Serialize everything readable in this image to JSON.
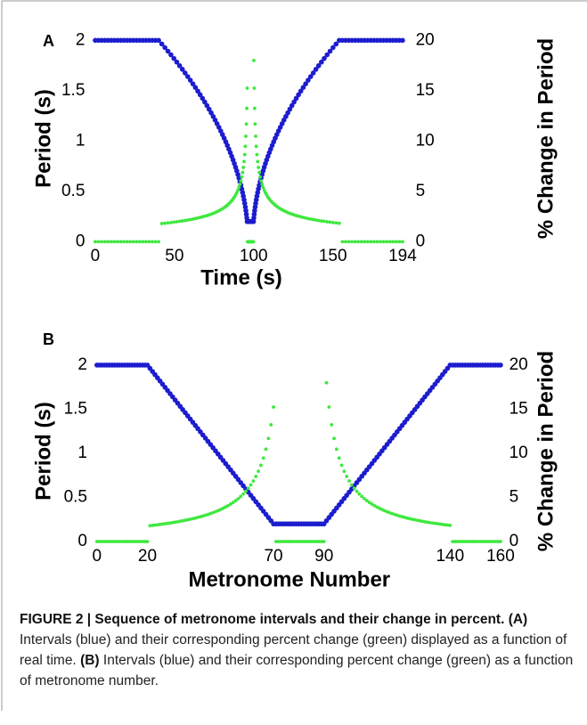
{
  "chart_data": [
    {
      "type": "scatter",
      "panel_label": "A",
      "xlabel": "Time (s)",
      "ylabel": "Period (s)",
      "y2label": "% Change in Period",
      "x": [
        0,
        2,
        4,
        6,
        8,
        10,
        12,
        14,
        16,
        18,
        20,
        22,
        24,
        26,
        28,
        30,
        32,
        34,
        36,
        38,
        40,
        42,
        43.964,
        45.892,
        47.784,
        49.64,
        51.46,
        53.244,
        54.992,
        56.704,
        58.38,
        60.02,
        61.624,
        63.192,
        64.724,
        66.22,
        67.68,
        69.104,
        70.492,
        71.844,
        73.16,
        74.44,
        75.684,
        76.892,
        78.064,
        79.2,
        80.3,
        81.364,
        82.392,
        83.384,
        84.34,
        85.26,
        86.144,
        86.992,
        87.804,
        88.58,
        89.32,
        90.024,
        90.692,
        91.324,
        91.92,
        92.48,
        93.004,
        93.492,
        93.944,
        94.36,
        94.74,
        95.084,
        95.392,
        95.664,
        95.9,
        96.1,
        96.3,
        96.5,
        96.7,
        96.9,
        97.1,
        97.3,
        97.5,
        97.7,
        97.9,
        98.1,
        98.3,
        98.5,
        98.7,
        98.9,
        99.1,
        99.3,
        99.5,
        99.7,
        99.9,
        100.1,
        100.336,
        100.608,
        100.916,
        101.26,
        101.64,
        102.056,
        102.508,
        102.996,
        103.52,
        104.08,
        104.676,
        105.308,
        105.976,
        106.68,
        107.42,
        108.196,
        109.008,
        109.856,
        110.74,
        111.66,
        112.616,
        113.608,
        114.636,
        115.7,
        116.8,
        117.936,
        119.108,
        120.316,
        121.56,
        122.84,
        124.156,
        125.508,
        126.896,
        128.32,
        129.78,
        131.276,
        132.808,
        134.376,
        135.98,
        137.62,
        139.296,
        141.008,
        142.756,
        144.54,
        146.36,
        148.216,
        150.108,
        152.036,
        154,
        156,
        158,
        160,
        162,
        164,
        166,
        168,
        170,
        172,
        174,
        176,
        178,
        180,
        182,
        184,
        186,
        188,
        190,
        192,
        194
      ],
      "xlim": [
        -2,
        200
      ],
      "xticks": [
        0,
        50,
        100,
        150,
        194
      ],
      "ylim": [
        -0.05,
        2.1
      ],
      "yticks": [
        0,
        0.5,
        1,
        1.5,
        2
      ],
      "y2lim": [
        -0.5,
        21
      ],
      "y2ticks": [
        0,
        5,
        10,
        15,
        20
      ],
      "series": [
        {
          "color": "#1c1ccf",
          "values": [
            2,
            2,
            2,
            2,
            2,
            2,
            2,
            2,
            2,
            2,
            2,
            2,
            2,
            2,
            2,
            2,
            2,
            2,
            2,
            2,
            2,
            1.964,
            1.928,
            1.892,
            1.856,
            1.82,
            1.784,
            1.748,
            1.712,
            1.676,
            1.64,
            1.604,
            1.568,
            1.532,
            1.496,
            1.46,
            1.424,
            1.388,
            1.352,
            1.316,
            1.28,
            1.244,
            1.208,
            1.172,
            1.136,
            1.1,
            1.064,
            1.028,
            0.992,
            0.956,
            0.92,
            0.884,
            0.848,
            0.812,
            0.776,
            0.74,
            0.704,
            0.668,
            0.632,
            0.596,
            0.56,
            0.524,
            0.488,
            0.452,
            0.416,
            0.38,
            0.344,
            0.308,
            0.272,
            0.236,
            0.2,
            0.2,
            0.2,
            0.2,
            0.2,
            0.2,
            0.2,
            0.2,
            0.2,
            0.2,
            0.2,
            0.2,
            0.2,
            0.2,
            0.2,
            0.2,
            0.2,
            0.2,
            0.2,
            0.2,
            0.2,
            0.236,
            0.272,
            0.308,
            0.344,
            0.38,
            0.416,
            0.452,
            0.488,
            0.524,
            0.56,
            0.596,
            0.632,
            0.668,
            0.704,
            0.74,
            0.776,
            0.812,
            0.848,
            0.884,
            0.92,
            0.956,
            0.992,
            1.028,
            1.064,
            1.1,
            1.136,
            1.172,
            1.208,
            1.244,
            1.28,
            1.316,
            1.352,
            1.388,
            1.424,
            1.46,
            1.496,
            1.532,
            1.568,
            1.604,
            1.64,
            1.676,
            1.712,
            1.748,
            1.784,
            1.82,
            1.856,
            1.892,
            1.928,
            1.964,
            2,
            2,
            2,
            2,
            2,
            2,
            2,
            2,
            2,
            2,
            2,
            2,
            2,
            2,
            2,
            2,
            2,
            2,
            2,
            2,
            2
          ]
        },
        {
          "color": "#3ee83e",
          "axis": "y2",
          "values": [
            0,
            0,
            0,
            0,
            0,
            0,
            0,
            0,
            0,
            0,
            0,
            0,
            0,
            0,
            0,
            0,
            0,
            0,
            0,
            0,
            0,
            1.8,
            1.83,
            1.87,
            1.9,
            1.94,
            1.98,
            2.02,
            2.06,
            2.1,
            2.15,
            2.2,
            2.24,
            2.3,
            2.35,
            2.41,
            2.47,
            2.53,
            2.59,
            2.66,
            2.74,
            2.81,
            2.89,
            2.98,
            3.07,
            3.17,
            3.27,
            3.38,
            3.5,
            3.63,
            3.77,
            3.91,
            4.07,
            4.25,
            4.43,
            4.64,
            4.86,
            5.11,
            5.39,
            5.7,
            6.04,
            6.43,
            6.87,
            7.38,
            7.96,
            8.65,
            9.47,
            10.47,
            11.69,
            13.24,
            15.25,
            0,
            0,
            0,
            0,
            0,
            0,
            0,
            0,
            0,
            0,
            0,
            0,
            0,
            0,
            0,
            0,
            0,
            0,
            0,
            0,
            18,
            15.25,
            13.24,
            11.69,
            10.47,
            9.47,
            8.65,
            7.96,
            7.38,
            6.87,
            6.43,
            6.04,
            5.7,
            5.39,
            5.11,
            4.86,
            4.64,
            4.43,
            4.25,
            4.07,
            3.91,
            3.77,
            3.63,
            3.5,
            3.38,
            3.27,
            3.17,
            3.07,
            2.98,
            2.89,
            2.81,
            2.74,
            2.66,
            2.59,
            2.53,
            2.47,
            2.41,
            2.35,
            2.3,
            2.24,
            2.2,
            2.15,
            2.1,
            2.06,
            2.02,
            1.98,
            1.94,
            1.9,
            1.87,
            1.83,
            0,
            0,
            0,
            0,
            0,
            0,
            0,
            0,
            0,
            0,
            0,
            0,
            0,
            0,
            0,
            0,
            0,
            0,
            0,
            0
          ]
        }
      ]
    },
    {
      "type": "scatter",
      "panel_label": "B",
      "xlabel": "Metronome Number",
      "ylabel": "Period (s)",
      "y2label": "% Change in Period",
      "x": [
        0,
        1,
        2,
        3,
        4,
        5,
        6,
        7,
        8,
        9,
        10,
        11,
        12,
        13,
        14,
        15,
        16,
        17,
        18,
        19,
        20,
        21,
        22,
        23,
        24,
        25,
        26,
        27,
        28,
        29,
        30,
        31,
        32,
        33,
        34,
        35,
        36,
        37,
        38,
        39,
        40,
        41,
        42,
        43,
        44,
        45,
        46,
        47,
        48,
        49,
        50,
        51,
        52,
        53,
        54,
        55,
        56,
        57,
        58,
        59,
        60,
        61,
        62,
        63,
        64,
        65,
        66,
        67,
        68,
        69,
        70,
        71,
        72,
        73,
        74,
        75,
        76,
        77,
        78,
        79,
        80,
        81,
        82,
        83,
        84,
        85,
        86,
        87,
        88,
        89,
        90,
        91,
        92,
        93,
        94,
        95,
        96,
        97,
        98,
        99,
        100,
        101,
        102,
        103,
        104,
        105,
        106,
        107,
        108,
        109,
        110,
        111,
        112,
        113,
        114,
        115,
        116,
        117,
        118,
        119,
        120,
        121,
        122,
        123,
        124,
        125,
        126,
        127,
        128,
        129,
        130,
        131,
        132,
        133,
        134,
        135,
        136,
        137,
        138,
        139,
        140,
        141,
        142,
        143,
        144,
        145,
        146,
        147,
        148,
        149,
        150,
        151,
        152,
        153,
        154,
        155,
        156,
        157,
        158,
        159,
        160
      ],
      "xlim": [
        -1,
        162
      ],
      "xticks": [
        0,
        20,
        70,
        90,
        140,
        160
      ],
      "ylim": [
        -0.05,
        2.1
      ],
      "yticks": [
        0,
        0.5,
        1,
        1.5,
        2
      ],
      "y2lim": [
        -0.5,
        21
      ],
      "y2ticks": [
        0,
        5,
        10,
        15,
        20
      ],
      "series": [
        {
          "color": "#1c1ccf",
          "values": [
            2,
            2,
            2,
            2,
            2,
            2,
            2,
            2,
            2,
            2,
            2,
            2,
            2,
            2,
            2,
            2,
            2,
            2,
            2,
            2,
            2,
            1.964,
            1.928,
            1.892,
            1.856,
            1.82,
            1.784,
            1.748,
            1.712,
            1.676,
            1.64,
            1.604,
            1.568,
            1.532,
            1.496,
            1.46,
            1.424,
            1.388,
            1.352,
            1.316,
            1.28,
            1.244,
            1.208,
            1.172,
            1.136,
            1.1,
            1.064,
            1.028,
            0.992,
            0.956,
            0.92,
            0.884,
            0.848,
            0.812,
            0.776,
            0.74,
            0.704,
            0.668,
            0.632,
            0.596,
            0.56,
            0.524,
            0.488,
            0.452,
            0.416,
            0.38,
            0.344,
            0.308,
            0.272,
            0.236,
            0.2,
            0.2,
            0.2,
            0.2,
            0.2,
            0.2,
            0.2,
            0.2,
            0.2,
            0.2,
            0.2,
            0.2,
            0.2,
            0.2,
            0.2,
            0.2,
            0.2,
            0.2,
            0.2,
            0.2,
            0.2,
            0.236,
            0.272,
            0.308,
            0.344,
            0.38,
            0.416,
            0.452,
            0.488,
            0.524,
            0.56,
            0.596,
            0.632,
            0.668,
            0.704,
            0.74,
            0.776,
            0.812,
            0.848,
            0.884,
            0.92,
            0.956,
            0.992,
            1.028,
            1.064,
            1.1,
            1.136,
            1.172,
            1.208,
            1.244,
            1.28,
            1.316,
            1.352,
            1.388,
            1.424,
            1.46,
            1.496,
            1.532,
            1.568,
            1.604,
            1.64,
            1.676,
            1.712,
            1.748,
            1.784,
            1.82,
            1.856,
            1.892,
            1.928,
            1.964,
            2,
            2,
            2,
            2,
            2,
            2,
            2,
            2,
            2,
            2,
            2,
            2,
            2,
            2,
            2,
            2,
            2,
            2,
            2,
            2,
            2
          ]
        },
        {
          "color": "#3ee83e",
          "axis": "y2",
          "values": [
            0,
            0,
            0,
            0,
            0,
            0,
            0,
            0,
            0,
            0,
            0,
            0,
            0,
            0,
            0,
            0,
            0,
            0,
            0,
            0,
            0,
            1.8,
            1.83,
            1.87,
            1.9,
            1.94,
            1.98,
            2.02,
            2.06,
            2.1,
            2.15,
            2.2,
            2.24,
            2.3,
            2.35,
            2.41,
            2.47,
            2.53,
            2.59,
            2.66,
            2.74,
            2.81,
            2.89,
            2.98,
            3.07,
            3.17,
            3.27,
            3.38,
            3.5,
            3.63,
            3.77,
            3.91,
            4.07,
            4.25,
            4.43,
            4.64,
            4.86,
            5.11,
            5.39,
            5.7,
            6.04,
            6.43,
            6.87,
            7.38,
            7.96,
            8.65,
            9.47,
            10.47,
            11.69,
            13.24,
            15.25,
            0,
            0,
            0,
            0,
            0,
            0,
            0,
            0,
            0,
            0,
            0,
            0,
            0,
            0,
            0,
            0,
            0,
            0,
            0,
            0,
            18,
            15.25,
            13.24,
            11.69,
            10.47,
            9.47,
            8.65,
            7.96,
            7.38,
            6.87,
            6.43,
            6.04,
            5.7,
            5.39,
            5.11,
            4.86,
            4.64,
            4.43,
            4.25,
            4.07,
            3.91,
            3.77,
            3.63,
            3.5,
            3.38,
            3.27,
            3.17,
            3.07,
            2.98,
            2.89,
            2.81,
            2.74,
            2.66,
            2.59,
            2.53,
            2.47,
            2.41,
            2.35,
            2.3,
            2.24,
            2.2,
            2.15,
            2.1,
            2.06,
            2.02,
            1.98,
            1.94,
            1.9,
            1.87,
            1.83,
            0,
            0,
            0,
            0,
            0,
            0,
            0,
            0,
            0,
            0,
            0,
            0,
            0,
            0,
            0,
            0,
            0,
            0,
            0,
            0
          ]
        }
      ]
    }
  ],
  "caption": {
    "title": "FIGURE 2 | Sequence of metronome intervals and their change in percent.",
    "label_a": "(A)",
    "text_a": " Intervals (blue) and their corresponding percent change (green) displayed as a function of real time.",
    "label_b": "(B)",
    "text_b": " Intervals (blue) and their corresponding percent change (green) as a function of metronome number."
  }
}
